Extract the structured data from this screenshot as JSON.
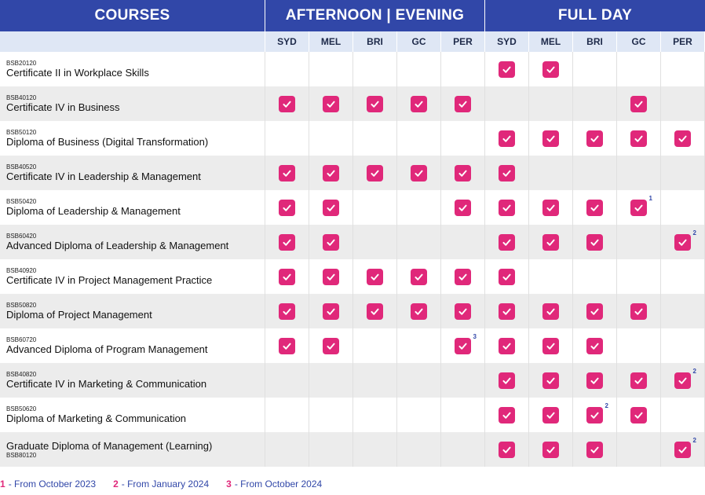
{
  "headers": {
    "courses": "COURSES",
    "afternoon_evening": "AFTERNOON | EVENING",
    "full_day": "FULL DAY"
  },
  "locations": [
    "SYD",
    "MEL",
    "BRI",
    "GC",
    "PER"
  ],
  "colors": {
    "header": "#3147a8",
    "check": "#e0287a",
    "subheader": "#dfe7f5",
    "row_alt": "#ececec"
  },
  "icons": {
    "check": "check-icon"
  },
  "courses": [
    {
      "code": "BSB20120",
      "name": "Certificate II in Workplace Skills",
      "ae": [
        false,
        false,
        false,
        false,
        false
      ],
      "fd": [
        true,
        true,
        false,
        false,
        false
      ],
      "ae_fn": [
        null,
        null,
        null,
        null,
        null
      ],
      "fd_fn": [
        null,
        null,
        null,
        null,
        null
      ]
    },
    {
      "code": "BSB40120",
      "name": "Certificate IV in Business",
      "ae": [
        true,
        true,
        true,
        true,
        true
      ],
      "fd": [
        false,
        false,
        false,
        true,
        false
      ],
      "ae_fn": [
        null,
        null,
        null,
        null,
        null
      ],
      "fd_fn": [
        null,
        null,
        null,
        null,
        null
      ]
    },
    {
      "code": "BSB50120",
      "name": "Diploma of Business (Digital Transformation)",
      "ae": [
        false,
        false,
        false,
        false,
        false
      ],
      "fd": [
        true,
        true,
        true,
        true,
        true
      ],
      "ae_fn": [
        null,
        null,
        null,
        null,
        null
      ],
      "fd_fn": [
        null,
        null,
        null,
        null,
        null
      ]
    },
    {
      "code": "BSB40520",
      "name": "Certificate IV in Leadership & Management",
      "ae": [
        true,
        true,
        true,
        true,
        true
      ],
      "fd": [
        true,
        false,
        false,
        false,
        false
      ],
      "ae_fn": [
        null,
        null,
        null,
        null,
        null
      ],
      "fd_fn": [
        null,
        null,
        null,
        null,
        null
      ]
    },
    {
      "code": "BSB50420",
      "name": "Diploma of Leadership & Management",
      "ae": [
        true,
        true,
        false,
        false,
        true
      ],
      "fd": [
        true,
        true,
        true,
        true,
        false
      ],
      "ae_fn": [
        null,
        null,
        null,
        null,
        null
      ],
      "fd_fn": [
        null,
        null,
        null,
        "1",
        null
      ]
    },
    {
      "code": "BSB60420",
      "name": "Advanced Diploma of Leadership & Management",
      "ae": [
        true,
        true,
        false,
        false,
        false
      ],
      "fd": [
        true,
        true,
        true,
        false,
        true
      ],
      "ae_fn": [
        null,
        null,
        null,
        null,
        null
      ],
      "fd_fn": [
        null,
        null,
        null,
        null,
        "2"
      ]
    },
    {
      "code": "BSB40920",
      "name": "Certificate IV in Project Management Practice",
      "ae": [
        true,
        true,
        true,
        true,
        true
      ],
      "fd": [
        true,
        false,
        false,
        false,
        false
      ],
      "ae_fn": [
        null,
        null,
        null,
        null,
        null
      ],
      "fd_fn": [
        null,
        null,
        null,
        null,
        null
      ]
    },
    {
      "code": "BSB50820",
      "name": "Diploma of Project Management",
      "ae": [
        true,
        true,
        true,
        true,
        true
      ],
      "fd": [
        true,
        true,
        true,
        true,
        false
      ],
      "ae_fn": [
        null,
        null,
        null,
        null,
        null
      ],
      "fd_fn": [
        null,
        null,
        null,
        null,
        null
      ]
    },
    {
      "code": "BSB60720",
      "name": "Advanced Diploma of Program Management",
      "ae": [
        true,
        true,
        false,
        false,
        true
      ],
      "fd": [
        true,
        true,
        true,
        false,
        false
      ],
      "ae_fn": [
        null,
        null,
        null,
        null,
        "3"
      ],
      "fd_fn": [
        null,
        null,
        null,
        null,
        null
      ]
    },
    {
      "code": "BSB40820",
      "name": "Certificate IV in Marketing & Communication",
      "ae": [
        false,
        false,
        false,
        false,
        false
      ],
      "fd": [
        true,
        true,
        true,
        true,
        true
      ],
      "ae_fn": [
        null,
        null,
        null,
        null,
        null
      ],
      "fd_fn": [
        null,
        null,
        null,
        null,
        "2"
      ]
    },
    {
      "code": "BSB50620",
      "name": "Diploma of Marketing & Communication",
      "ae": [
        false,
        false,
        false,
        false,
        false
      ],
      "fd": [
        true,
        true,
        true,
        true,
        false
      ],
      "ae_fn": [
        null,
        null,
        null,
        null,
        null
      ],
      "fd_fn": [
        null,
        null,
        "2",
        null,
        null
      ]
    },
    {
      "code": "BSB80120",
      "name": "Graduate Diploma of Management (Learning)",
      "code_below": true,
      "ae": [
        false,
        false,
        false,
        false,
        false
      ],
      "fd": [
        true,
        true,
        true,
        false,
        true
      ],
      "ae_fn": [
        null,
        null,
        null,
        null,
        null
      ],
      "fd_fn": [
        null,
        null,
        null,
        null,
        "2"
      ]
    }
  ],
  "legend": [
    {
      "num": "1",
      "text": "- From October 2023"
    },
    {
      "num": "2",
      "text": "- From January 2024"
    },
    {
      "num": "3",
      "text": "- From October 2024"
    }
  ]
}
